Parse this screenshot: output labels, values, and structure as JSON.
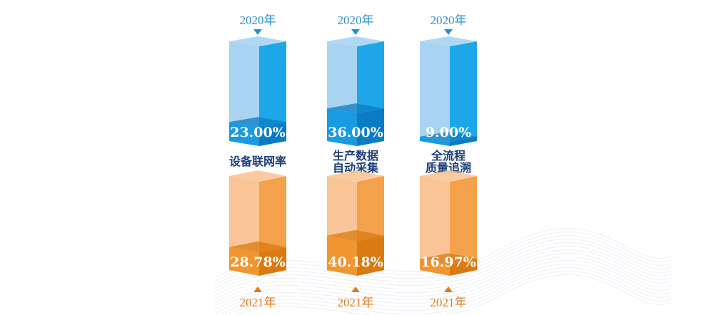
{
  "chart_data": {
    "type": "bar",
    "categories": [
      [
        "设备联网率"
      ],
      [
        "生产数据",
        "自动采集"
      ],
      [
        "全流程",
        "质量追溯"
      ]
    ],
    "series": [
      {
        "name": "2020年",
        "values": [
          23.0,
          36.0,
          9.0
        ],
        "labels": [
          "23.00%",
          "36.00%",
          "9.00%"
        ]
      },
      {
        "name": "2021年",
        "values": [
          28.78,
          40.18,
          16.97
        ],
        "labels": [
          "28.78%",
          "40.18%",
          "16.97%"
        ]
      }
    ],
    "ylim": [
      0,
      100
    ]
  },
  "colors": {
    "blue_front_fill": "#1a9ae0",
    "blue_side_fill": "#0a7cc6",
    "blue_front_empty": "#a8d4f2",
    "blue_side_empty": "#1ea7e8",
    "blue_label": "#2a8fd6",
    "orange_front_fill": "#f0952f",
    "orange_side_fill": "#d97a12",
    "orange_front_empty": "#fac596",
    "orange_side_empty": "#f4a14b",
    "orange_label": "#e07b1c",
    "category_text": "#1e3f78"
  }
}
